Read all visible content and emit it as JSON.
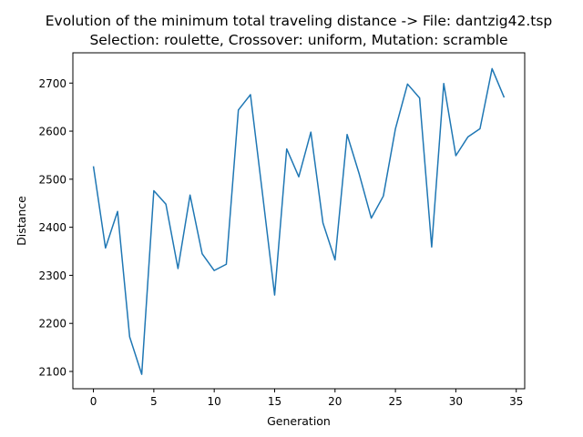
{
  "chart_data": {
    "type": "line",
    "title": "Evolution of the minimum total traveling distance -> File: dantzig42.tsp",
    "subtitle": "Selection: roulette, Crossover: uniform, Mutation: scramble",
    "xlabel": "Generation",
    "ylabel": "Distance",
    "xlim": [
      -1.7,
      35.7
    ],
    "ylim": [
      2064,
      2763
    ],
    "xticks": [
      0,
      5,
      10,
      15,
      20,
      25,
      30,
      35
    ],
    "yticks": [
      2100,
      2200,
      2300,
      2400,
      2500,
      2600,
      2700
    ],
    "grid": false,
    "series": [
      {
        "color": "#1f77b4",
        "x": [
          0,
          1,
          2,
          3,
          4,
          5,
          6,
          7,
          8,
          9,
          10,
          11,
          12,
          13,
          14,
          15,
          16,
          17,
          18,
          19,
          20,
          21,
          22,
          23,
          24,
          25,
          26,
          27,
          28,
          29,
          30,
          31,
          32,
          33,
          34
        ],
        "y": [
          2527,
          2357,
          2433,
          2172,
          2094,
          2476,
          2448,
          2314,
          2467,
          2345,
          2310,
          2323,
          2644,
          2676,
          2469,
          2259,
          2563,
          2505,
          2598,
          2409,
          2332,
          2593,
          2511,
          2419,
          2465,
          2605,
          2698,
          2669,
          2359,
          2699,
          2549,
          2588,
          2605,
          2730,
          2670
        ]
      }
    ]
  }
}
